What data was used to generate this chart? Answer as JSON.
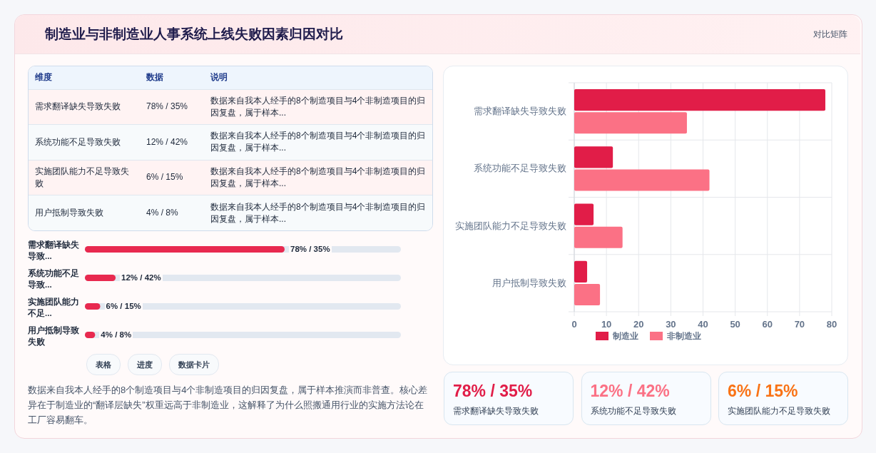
{
  "chart_data": [
    {
      "type": "other",
      "title": "制造业与非制造业人事系统上线失败因素归因对比",
      "annotations": [
        "对比矩阵"
      ]
    },
    {
      "type": "other",
      "annotations": [
        "维度",
        "数据",
        "说明",
        "需求翻译缺失导致失败",
        "78% / 35%",
        "数据来自我本人经手的8个制造项目与4个非制造项目的归因复盘，属于样本...",
        "系统功能不足导致失败",
        "12% / 42%",
        "数据来自我本人经手的8个制造项目与4个非制造项目的归因复盘，属于样本...",
        "实施团队能力不足导致失败",
        "6% / 15%",
        "数据来自我本人经手的8个制造项目与4个非制造项目的归因复盘，属于样本...",
        "用户抵制导致失败",
        "4% / 8%",
        "数据来自我本人经手的8个制造项目与4个非制造项目的归因复盘，属于样本..."
      ]
    },
    {
      "type": "bar",
      "orientation": "horizontal",
      "categories": [
        "需求翻译缺失导致...",
        "系统功能不足导致...",
        "实施团队能力不足...",
        "用户抵制导致失败"
      ],
      "values": [
        78,
        12,
        6,
        4
      ],
      "color": "#e8294f",
      "value_labels": [
        "78% / 35%",
        "12% / 42%",
        "6% / 15%",
        "4% / 8%"
      ]
    },
    {
      "type": "other",
      "annotations": [
        "表格",
        "进度",
        "数据卡片",
        "数据来自我本人经手的8个制造项目与4个非制造项目的归因复盘，属于样本推演而非普查。核心差异在于制造业的“翻译层缺失”权重远高于非制造业，这解释了为什么照搬通用行业的实施方法论在工厂容易翻车。"
      ]
    },
    {
      "type": "bar",
      "orientation": "horizontal",
      "categories": [
        "需求翻译缺失导致失败",
        "系统功能不足导致失败",
        "实施团队能力不足导致失败",
        "用户抵制导致失败"
      ],
      "series": [
        {
          "name": "制造业",
          "color": "#e11d48",
          "values": [
            78,
            12,
            6,
            4
          ]
        },
        {
          "name": "非制造业",
          "color": "#fb7185",
          "values": [
            35,
            42,
            15,
            8
          ]
        }
      ],
      "xlim": [
        0,
        80
      ],
      "xticks": [
        0,
        10,
        20,
        30,
        40,
        50,
        60,
        70,
        80
      ],
      "grid": true,
      "legend": "bottom"
    },
    {
      "type": "other",
      "annotations": [
        "78% / 35%",
        "需求翻译缺失导致失败",
        "12% / 42%",
        "系统功能不足导致失败",
        "6% / 15%",
        "实施团队能力不足导致失败"
      ],
      "colors": [
        "#e11d48",
        "#fb7185",
        "#f97316"
      ]
    }
  ]
}
